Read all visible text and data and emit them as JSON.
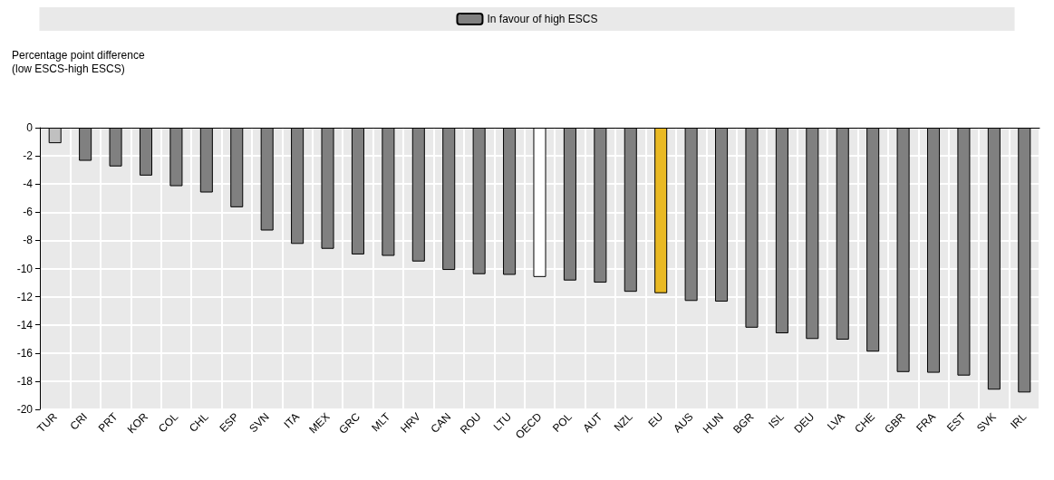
{
  "chart_data": {
    "type": "bar",
    "ylabel": "Percentage point difference\n(low ESCS-high ESCS)",
    "categories": [
      "TUR",
      "CRI",
      "PRT",
      "KOR",
      "COL",
      "CHL",
      "ESP",
      "SVN",
      "ITA",
      "MEX",
      "GRC",
      "MLT",
      "HRV",
      "CAN",
      "ROU",
      "LTU",
      "OECD",
      "POL",
      "AUT",
      "NZL",
      "EU",
      "AUS",
      "HUN",
      "BGR",
      "ISL",
      "DEU",
      "LVA",
      "CHE",
      "GBR",
      "FRA",
      "EST",
      "SVK",
      "IRL"
    ],
    "series": [
      {
        "name": "In favour of high ESCS",
        "color": "#808080",
        "values": [
          -1.1,
          -2.35,
          -2.75,
          -3.4,
          -4.15,
          -4.6,
          -5.65,
          -7.3,
          -8.25,
          -8.6,
          -9.0,
          -9.1,
          -9.5,
          -10.1,
          -10.4,
          -10.45,
          -10.6,
          -10.85,
          -11.0,
          -11.65,
          -11.75,
          -12.3,
          -12.35,
          -14.2,
          -14.6,
          -15.0,
          -15.05,
          -15.9,
          -17.35,
          -17.4,
          -17.6,
          -18.6,
          -18.8
        ],
        "colors": [
          "#c0c0c0",
          "#808080",
          "#808080",
          "#808080",
          "#808080",
          "#808080",
          "#808080",
          "#808080",
          "#808080",
          "#808080",
          "#808080",
          "#808080",
          "#808080",
          "#808080",
          "#808080",
          "#808080",
          "#ffffff",
          "#808080",
          "#808080",
          "#808080",
          "#e9b923",
          "#808080",
          "#808080",
          "#808080",
          "#808080",
          "#808080",
          "#808080",
          "#808080",
          "#808080",
          "#808080",
          "#808080",
          "#808080",
          "#808080"
        ]
      }
    ],
    "ylim": [
      -20,
      0
    ],
    "yticks": [
      -20,
      -18,
      -16,
      -14,
      -12,
      -10,
      -8,
      -6,
      -4,
      -2,
      0
    ],
    "grid": true,
    "legend": "top"
  }
}
